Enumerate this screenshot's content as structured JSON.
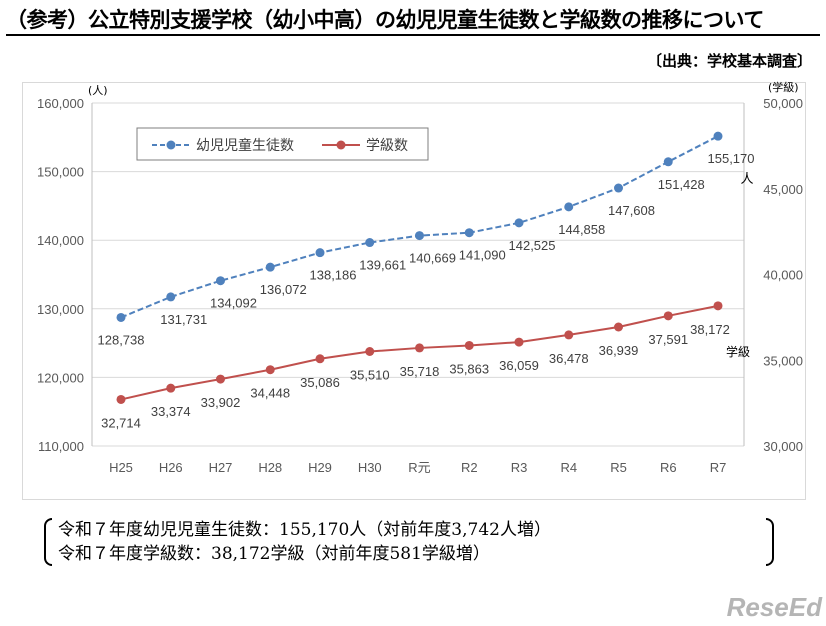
{
  "page": {
    "title": "（参考）公立特別支援学校（幼小中高）の幼児児童生徒数と学級数の推移について",
    "source": "〔出典：学校基本調査〕",
    "summary": [
      "令和７年度幼児児童生徒数：155,170人（対前年度3,742人増）",
      "令和７年度学級数：38,172学級（対前年度581学級増）"
    ],
    "logo": "ReseEd"
  },
  "chart_data": {
    "type": "line",
    "categories": [
      "H25",
      "H26",
      "H27",
      "H28",
      "H29",
      "H30",
      "R元",
      "R2",
      "R3",
      "R4",
      "R5",
      "R6",
      "R7"
    ],
    "y_left": {
      "unit": "(人)",
      "range": [
        110000,
        160000
      ],
      "ticks": [
        "110,000",
        "120,000",
        "130,000",
        "140,000",
        "150,000",
        "160,000"
      ]
    },
    "y_right": {
      "unit": "(学級)",
      "range": [
        30000,
        50000
      ],
      "ticks": [
        "30,000",
        "35,000",
        "40,000",
        "45,000",
        "50,000"
      ]
    },
    "grid": true,
    "legend_placement": "top-left",
    "series": [
      {
        "name": "幼児児童生徒数",
        "axis": "left",
        "color": "#4f81bd",
        "dash": true,
        "end_unit": "人",
        "values": [
          128738,
          131731,
          134092,
          136072,
          138186,
          139661,
          140669,
          141090,
          142525,
          144858,
          147608,
          151428,
          155170
        ],
        "labels": [
          "128,738",
          "131,731",
          "134,092",
          "136,072",
          "138,186",
          "139,661",
          "140,669",
          "141,090",
          "142,525",
          "144,858",
          "147,608",
          "151,428",
          "155,170"
        ]
      },
      {
        "name": "学級数",
        "axis": "right",
        "color": "#c0504d",
        "dash": false,
        "end_unit": "学級",
        "values": [
          32714,
          33374,
          33902,
          34448,
          35086,
          35510,
          35718,
          35863,
          36059,
          36478,
          36939,
          37591,
          38172
        ],
        "labels": [
          "32,714",
          "33,374",
          "33,902",
          "34,448",
          "35,086",
          "35,510",
          "35,718",
          "35,863",
          "36,059",
          "36,478",
          "36,939",
          "37,591",
          "38,172"
        ]
      }
    ]
  }
}
